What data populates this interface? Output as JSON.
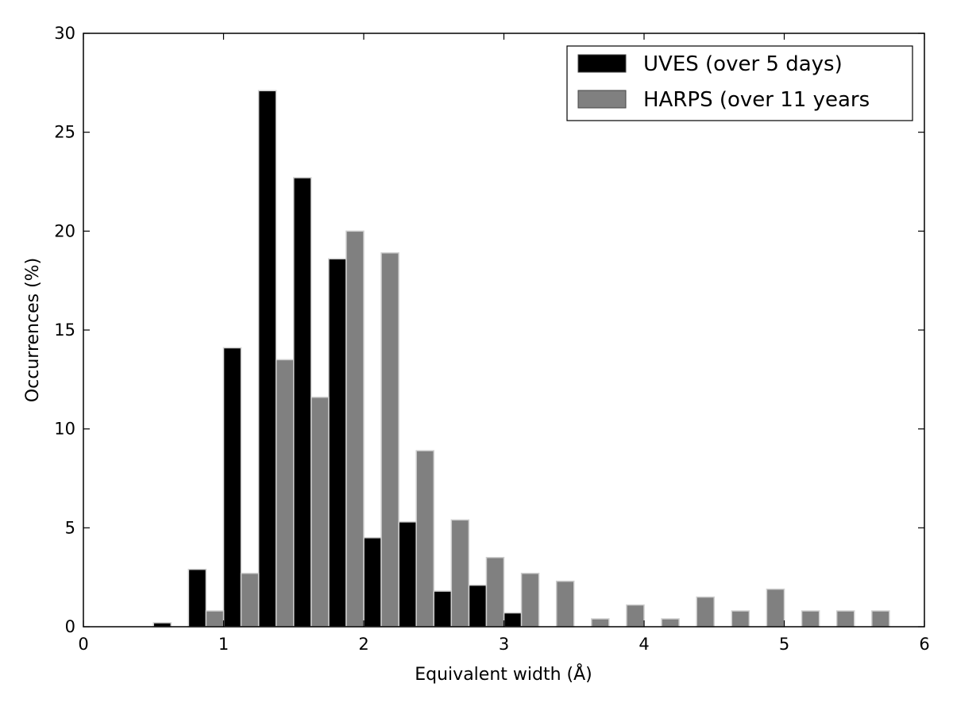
{
  "chart_data": {
    "type": "bar",
    "xlabel": "Equivalent width (Å)",
    "ylabel": "Occurrences (%)",
    "xlim": [
      0,
      6
    ],
    "ylim": [
      0,
      30
    ],
    "xticks": [
      0,
      1,
      2,
      3,
      4,
      5,
      6
    ],
    "yticks": [
      0,
      5,
      10,
      15,
      20,
      25,
      30
    ],
    "xtick_labels": [
      "0",
      "1",
      "2",
      "3",
      "4",
      "5",
      "6"
    ],
    "ytick_labels": [
      "0",
      "5",
      "10",
      "15",
      "20",
      "25",
      "30"
    ],
    "grid": false,
    "legend_position": "top-right",
    "bin_width": 0.25,
    "bin_starts": [
      0.0,
      0.25,
      0.5,
      0.75,
      1.0,
      1.25,
      1.5,
      1.75,
      2.0,
      2.25,
      2.5,
      2.75,
      3.0,
      3.25,
      3.5,
      3.75,
      4.0,
      4.25,
      4.5,
      4.75,
      5.0,
      5.25,
      5.5,
      5.75
    ],
    "series": [
      {
        "name": "UVES (over 5 days)",
        "color": "#000000",
        "values": [
          0,
          0,
          0.2,
          2.9,
          14.1,
          27.1,
          22.7,
          18.6,
          4.5,
          5.3,
          1.8,
          2.1,
          0.7,
          0,
          0,
          0,
          0,
          0,
          0,
          0,
          0,
          0,
          0,
          0
        ]
      },
      {
        "name": "HARPS (over 11 years",
        "color": "#808080",
        "values": [
          0,
          0,
          0,
          0.8,
          2.7,
          13.5,
          11.6,
          20.0,
          18.9,
          8.9,
          5.4,
          3.5,
          2.7,
          2.3,
          0.4,
          1.1,
          0.4,
          1.5,
          0.8,
          1.9,
          0.8,
          0.8,
          0.8,
          0
        ]
      }
    ]
  }
}
